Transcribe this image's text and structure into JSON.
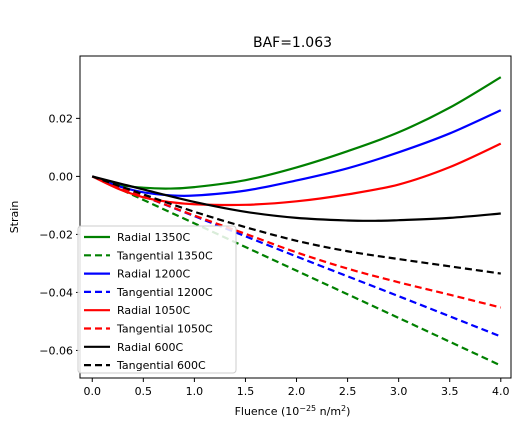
{
  "chart_data": {
    "type": "line",
    "title": "BAF=1.063",
    "xlabel_parts": {
      "pre": "Fluence (10",
      "exp": "−25",
      "mid": " n/m",
      "exp2": "2",
      "post": ")"
    },
    "ylabel": "Strain",
    "xlim": [
      -0.12,
      4.1
    ],
    "ylim": [
      -0.0695,
      0.0415
    ],
    "xticks": [
      0.0,
      0.5,
      1.0,
      1.5,
      2.0,
      2.5,
      3.0,
      3.5,
      4.0
    ],
    "xtick_labels": [
      "0.0",
      "0.5",
      "1.0",
      "1.5",
      "2.0",
      "2.5",
      "3.0",
      "3.5",
      "4.0"
    ],
    "yticks": [
      -0.06,
      -0.04,
      -0.02,
      0.0,
      0.02
    ],
    "ytick_labels": [
      "−0.06",
      "−0.04",
      "−0.02",
      "0.00",
      "0.02"
    ],
    "grid": false,
    "legend_position": "lower-left",
    "series": [
      {
        "name": "Radial 1350C",
        "color": "#008000",
        "dash": "solid",
        "x": [
          0.0,
          0.25,
          0.5,
          0.75,
          1.0,
          1.5,
          2.0,
          2.5,
          3.0,
          3.5,
          4.0
        ],
        "y": [
          0.0,
          -0.0028,
          -0.0039,
          -0.0042,
          -0.0037,
          -0.0013,
          0.0031,
          0.0087,
          0.0152,
          0.0237,
          0.0342
        ]
      },
      {
        "name": "Tangential 1350C",
        "color": "#008000",
        "dash": "dashed",
        "x": [
          0.0,
          1.0,
          2.0,
          3.0,
          4.0
        ],
        "y": [
          0.0,
          -0.0162,
          -0.0325,
          -0.0488,
          -0.0652
        ]
      },
      {
        "name": "Radial 1200C",
        "color": "#0000ff",
        "dash": "solid",
        "x": [
          0.0,
          0.25,
          0.5,
          0.75,
          1.0,
          1.5,
          2.0,
          2.5,
          3.0,
          3.5,
          4.0
        ],
        "y": [
          0.0,
          -0.0033,
          -0.0055,
          -0.0065,
          -0.0066,
          -0.0049,
          -0.0014,
          0.0028,
          0.0083,
          0.0148,
          0.0228
        ]
      },
      {
        "name": "Tangential 1200C",
        "color": "#0000ff",
        "dash": "dashed",
        "x": [
          0.0,
          1.0,
          2.0,
          3.0,
          4.0
        ],
        "y": [
          0.0,
          -0.0137,
          -0.0276,
          -0.0413,
          -0.0552
        ]
      },
      {
        "name": "Radial 1050C",
        "color": "#ff0000",
        "dash": "solid",
        "x": [
          0.0,
          0.25,
          0.5,
          0.75,
          1.0,
          1.5,
          2.0,
          2.5,
          3.0,
          3.5,
          4.0
        ],
        "y": [
          0.0,
          -0.0042,
          -0.0072,
          -0.0088,
          -0.0096,
          -0.0098,
          -0.0086,
          -0.0062,
          -0.0028,
          0.0032,
          0.0113
        ]
      },
      {
        "name": "Tangential 1050C",
        "color": "#ff0000",
        "dash": "dashed",
        "x": [
          0.0,
          0.5,
          1.0,
          1.5,
          2.0,
          2.5,
          3.0,
          3.5,
          4.0
        ],
        "y": [
          0.0,
          -0.0068,
          -0.0135,
          -0.0198,
          -0.0262,
          -0.0318,
          -0.0365,
          -0.0408,
          -0.0452
        ]
      },
      {
        "name": "Radial 600C",
        "color": "#000000",
        "dash": "solid",
        "x": [
          0.0,
          0.5,
          1.0,
          1.5,
          2.0,
          2.5,
          2.8,
          3.0,
          3.5,
          4.0
        ],
        "y": [
          0.0,
          -0.0045,
          -0.0088,
          -0.0122,
          -0.0143,
          -0.0152,
          -0.0153,
          -0.0151,
          -0.0143,
          -0.0128
        ]
      },
      {
        "name": "Tangential 600C",
        "color": "#000000",
        "dash": "dashed",
        "x": [
          0.0,
          0.5,
          1.0,
          1.5,
          2.0,
          2.5,
          3.0,
          3.5,
          4.0
        ],
        "y": [
          0.0,
          -0.0062,
          -0.0122,
          -0.0175,
          -0.0222,
          -0.0258,
          -0.0285,
          -0.031,
          -0.0335
        ]
      }
    ]
  }
}
